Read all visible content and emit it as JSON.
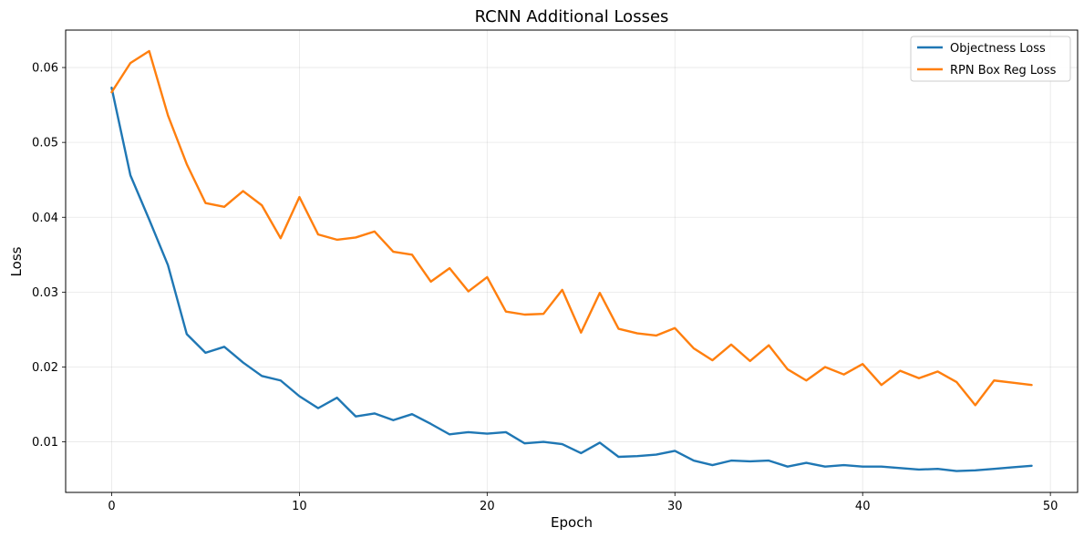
{
  "chart_data": {
    "type": "line",
    "title": "RCNN Additional Losses",
    "xlabel": "Epoch",
    "ylabel": "Loss",
    "xlim": [
      -2.45,
      51.45
    ],
    "ylim": [
      0.00325,
      0.065
    ],
    "xticks": [
      0,
      10,
      20,
      30,
      40,
      50
    ],
    "yticks": [
      0.01,
      0.02,
      0.03,
      0.04,
      0.05,
      0.06
    ],
    "ytick_labels": [
      "0.01",
      "0.02",
      "0.03",
      "0.04",
      "0.05",
      "0.06"
    ],
    "grid": true,
    "legend_position": "upper right",
    "x": [
      0,
      1,
      2,
      3,
      4,
      5,
      6,
      7,
      8,
      9,
      10,
      11,
      12,
      13,
      14,
      15,
      16,
      17,
      18,
      19,
      20,
      21,
      22,
      23,
      24,
      25,
      26,
      27,
      28,
      29,
      30,
      31,
      32,
      33,
      34,
      35,
      36,
      37,
      38,
      39,
      40,
      41,
      42,
      43,
      44,
      45,
      46,
      47,
      48,
      49
    ],
    "series": [
      {
        "name": "Objectness Loss",
        "color": "#1f77b4",
        "values": [
          0.0573,
          0.0456,
          0.0397,
          0.0336,
          0.0244,
          0.0219,
          0.0227,
          0.0206,
          0.0188,
          0.0182,
          0.0161,
          0.0145,
          0.0159,
          0.0134,
          0.0138,
          0.0129,
          0.0137,
          0.0124,
          0.011,
          0.0113,
          0.0111,
          0.0113,
          0.0098,
          0.01,
          0.0097,
          0.0085,
          0.0099,
          0.008,
          0.0081,
          0.0083,
          0.0088,
          0.0075,
          0.0069,
          0.0075,
          0.0074,
          0.0075,
          0.0067,
          0.0072,
          0.0067,
          0.0069,
          0.0067,
          0.0067,
          0.0065,
          0.0063,
          0.0064,
          0.0061,
          0.0062,
          0.0064,
          0.0066,
          0.0068
        ]
      },
      {
        "name": "RPN Box Reg Loss",
        "color": "#ff7f0e",
        "values": [
          0.0567,
          0.0606,
          0.0622,
          0.0536,
          0.0471,
          0.0419,
          0.0414,
          0.0435,
          0.0416,
          0.0372,
          0.0427,
          0.0377,
          0.037,
          0.0373,
          0.0381,
          0.0354,
          0.035,
          0.0314,
          0.0332,
          0.0301,
          0.032,
          0.0274,
          0.027,
          0.0271,
          0.0303,
          0.0246,
          0.0299,
          0.0251,
          0.0245,
          0.0242,
          0.0252,
          0.0225,
          0.0209,
          0.023,
          0.0208,
          0.0229,
          0.0197,
          0.0182,
          0.02,
          0.019,
          0.0204,
          0.0176,
          0.0195,
          0.0185,
          0.0194,
          0.018,
          0.0149,
          0.0182,
          0.0179,
          0.0176
        ]
      }
    ]
  }
}
